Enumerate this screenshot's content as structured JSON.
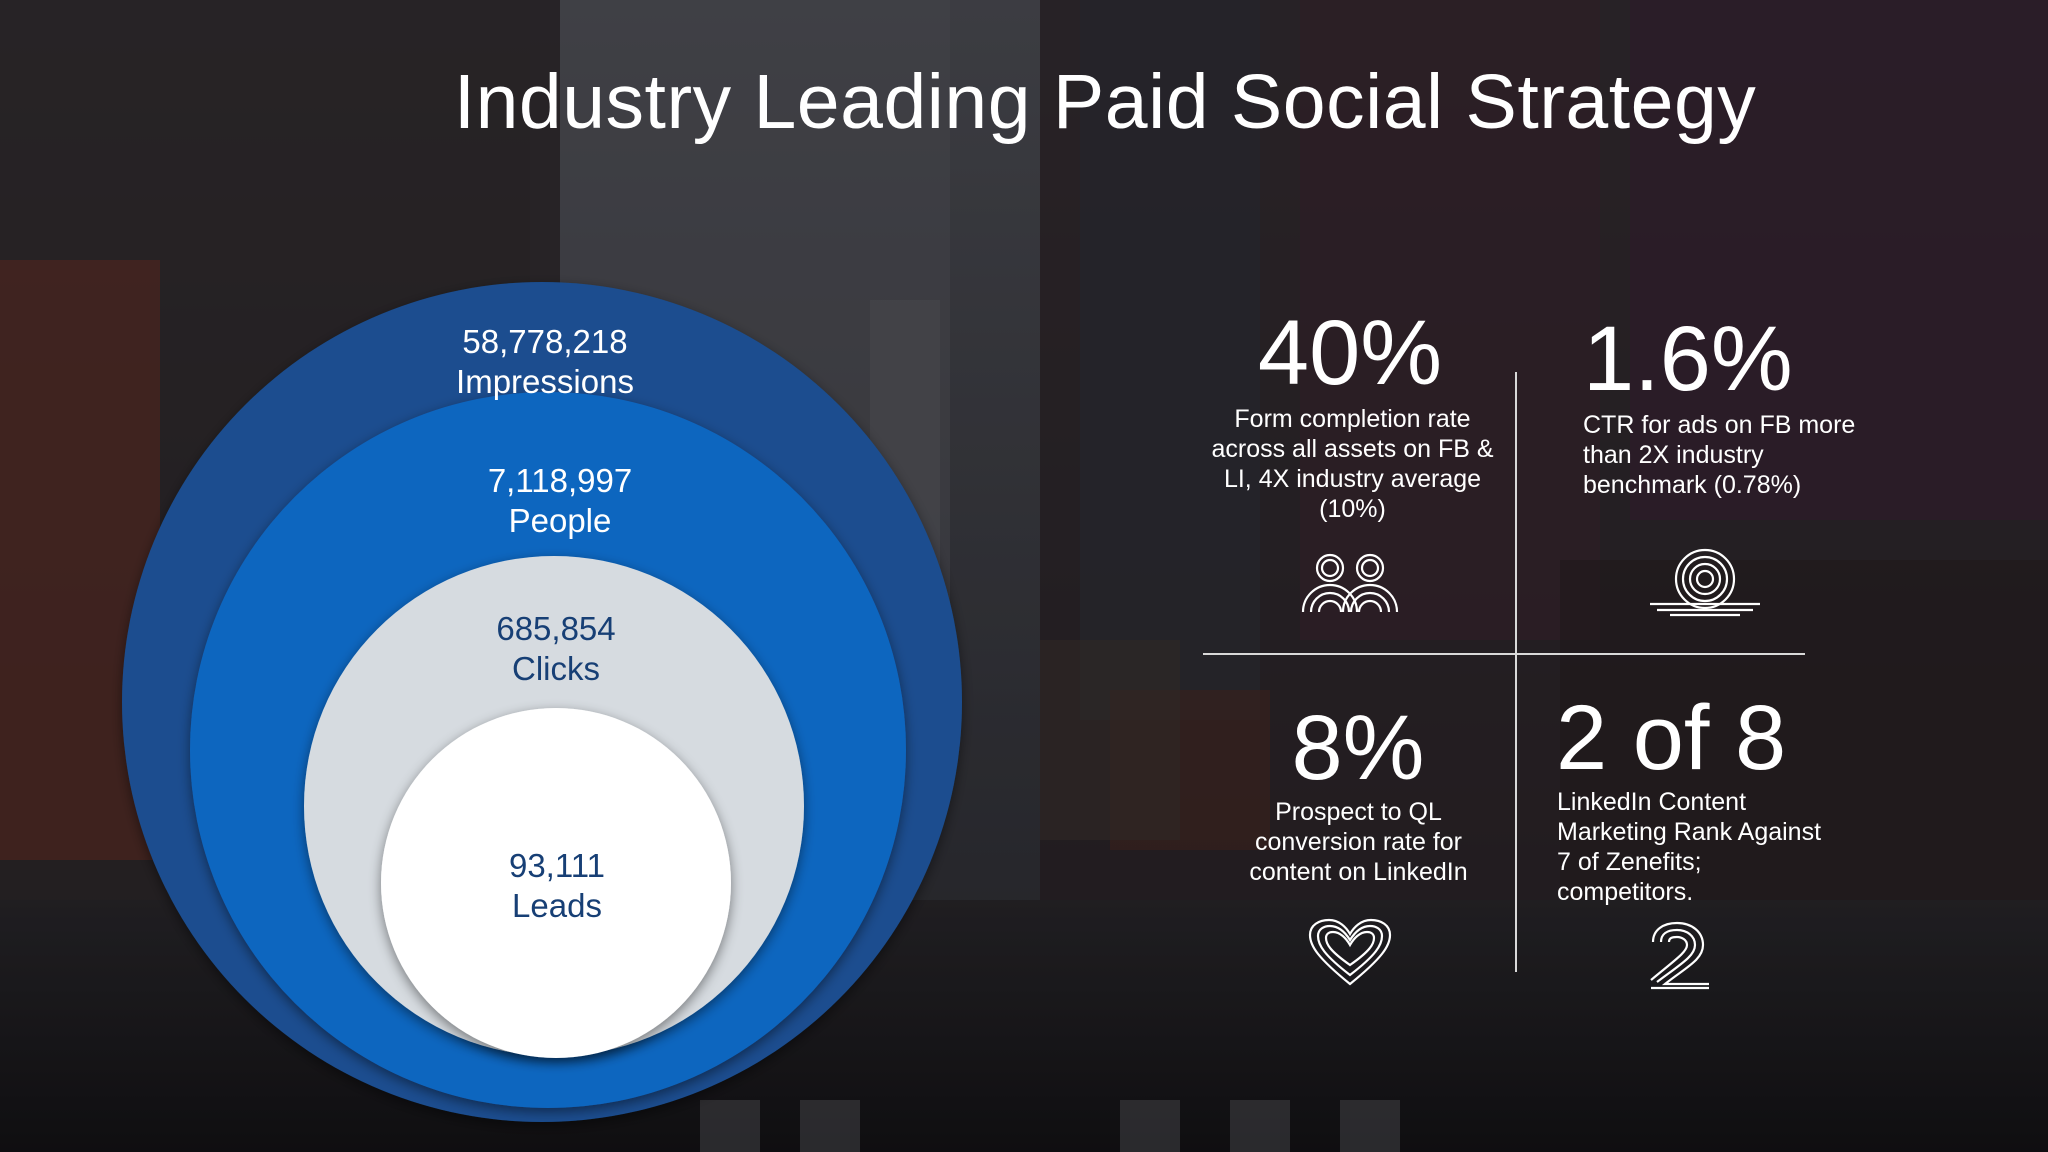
{
  "slide": {
    "title": "Industry Leading Paid Social Strategy"
  },
  "funnel": [
    {
      "value": "58,778,218",
      "label": "Impressions",
      "color": "#1a4e8f"
    },
    {
      "value": "7,118,997",
      "label": "People",
      "color": "#1066bf"
    },
    {
      "value": "685,854",
      "label": "Clicks",
      "color": "#d6dbe0"
    },
    {
      "value": "93,111",
      "label": "Leads",
      "color": "#ffffff"
    }
  ],
  "stats": [
    {
      "value": "40%",
      "description": "Form completion rate across all assets on FB & LI, 4X industry average (10%)",
      "icon": "people-icon"
    },
    {
      "value": "1.6%",
      "description": "CTR for ads on FB more than 2X industry benchmark (0.78%)",
      "icon": "target-icon"
    },
    {
      "value": "8%",
      "description": "Prospect to QL conversion rate for content on LinkedIn",
      "icon": "heart-icon"
    },
    {
      "value": "2 of 8",
      "description": "LinkedIn Content Marketing Rank Against 7 of Zenefits; competitors.",
      "icon": "number-two-icon"
    }
  ],
  "colors": {
    "background": "#1d1d22",
    "text": "#ffffff",
    "funnel_dark_text": "#173f75",
    "divider": "#d9d9d9"
  }
}
